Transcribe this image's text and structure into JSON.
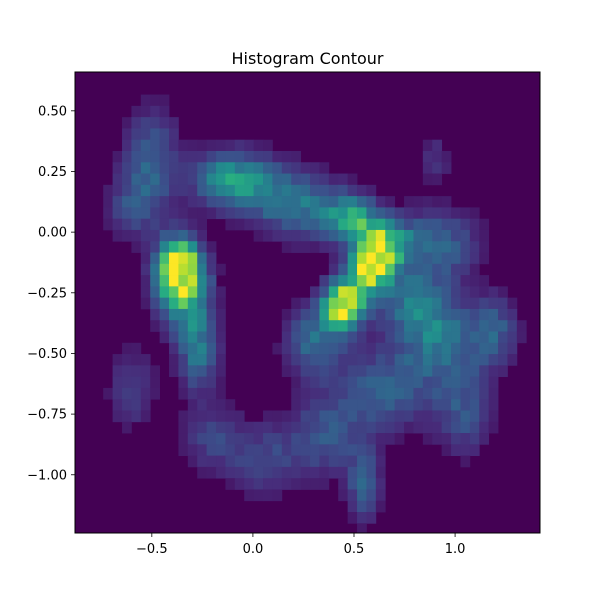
{
  "chart_data": {
    "type": "heatmap",
    "title": "Histogram Contour",
    "xlabel": "",
    "ylabel": "",
    "xlim": [
      -0.88,
      1.42
    ],
    "ylim": [
      -1.24,
      0.66
    ],
    "grid": false,
    "legend": "none",
    "colormap": "viridis",
    "background_color": "#440154",
    "x_ticks": [
      -0.5,
      0.0,
      0.5,
      1.0
    ],
    "x_tick_labels": [
      "−0.5",
      "0.0",
      "0.5",
      "1.0"
    ],
    "y_ticks": [
      0.5,
      0.25,
      0.0,
      -0.25,
      -0.5,
      -0.75,
      -1.0
    ],
    "y_tick_labels": [
      "0.50",
      "0.25",
      "0.00",
      "−0.25",
      "−0.50",
      "−0.75",
      "−1.00"
    ],
    "density_peaks": [
      {
        "x": -0.37,
        "y": -0.15,
        "intensity": 0.8,
        "sx": 0.07,
        "sy": 0.08
      },
      {
        "x": 0.58,
        "y": -0.15,
        "intensity": 1.0,
        "sx": 0.07,
        "sy": 0.07
      },
      {
        "x": 0.45,
        "y": -0.3,
        "intensity": 1.0,
        "sx": 0.07,
        "sy": 0.07
      },
      {
        "x": 0.65,
        "y": -0.05,
        "intensity": 0.65,
        "sx": 0.08,
        "sy": 0.07
      },
      {
        "x": 0.5,
        "y": 0.05,
        "intensity": 0.55,
        "sx": 0.09,
        "sy": 0.07
      },
      {
        "x": -0.12,
        "y": 0.22,
        "intensity": 0.55,
        "sx": 0.12,
        "sy": 0.08
      },
      {
        "x": -0.35,
        "y": -0.22,
        "intensity": 0.6,
        "sx": 0.09,
        "sy": 0.12
      },
      {
        "x": -0.27,
        "y": -0.48,
        "intensity": 0.4,
        "sx": 0.07,
        "sy": 0.12
      },
      {
        "x": -0.5,
        "y": 0.3,
        "intensity": 0.3,
        "sx": 0.1,
        "sy": 0.15
      },
      {
        "x": 0.1,
        "y": 0.15,
        "intensity": 0.3,
        "sx": 0.12,
        "sy": 0.1
      },
      {
        "x": 0.3,
        "y": 0.1,
        "intensity": 0.3,
        "sx": 0.12,
        "sy": 0.1
      },
      {
        "x": 0.9,
        "y": -0.05,
        "intensity": 0.35,
        "sx": 0.15,
        "sy": 0.1
      },
      {
        "x": 0.95,
        "y": -0.45,
        "intensity": 0.35,
        "sx": 0.15,
        "sy": 0.12
      },
      {
        "x": 0.65,
        "y": -0.65,
        "intensity": 0.3,
        "sx": 0.18,
        "sy": 0.12
      },
      {
        "x": 0.35,
        "y": -0.85,
        "intensity": 0.25,
        "sx": 0.15,
        "sy": 0.12
      },
      {
        "x": 0.55,
        "y": -1.05,
        "intensity": 0.3,
        "sx": 0.06,
        "sy": 0.1
      },
      {
        "x": -0.2,
        "y": -0.85,
        "intensity": 0.2,
        "sx": 0.12,
        "sy": 0.1
      },
      {
        "x": 0.05,
        "y": -0.95,
        "intensity": 0.2,
        "sx": 0.12,
        "sy": 0.1
      },
      {
        "x": 0.3,
        "y": -0.45,
        "intensity": 0.35,
        "sx": 0.1,
        "sy": 0.1
      },
      {
        "x": -0.6,
        "y": -0.65,
        "intensity": 0.2,
        "sx": 0.08,
        "sy": 0.12
      },
      {
        "x": 1.2,
        "y": -0.4,
        "intensity": 0.25,
        "sx": 0.08,
        "sy": 0.1
      },
      {
        "x": 1.05,
        "y": -0.75,
        "intensity": 0.25,
        "sx": 0.1,
        "sy": 0.12
      },
      {
        "x": 0.9,
        "y": 0.3,
        "intensity": 0.15,
        "sx": 0.06,
        "sy": 0.08
      },
      {
        "x": -0.6,
        "y": 0.1,
        "intensity": 0.2,
        "sx": 0.1,
        "sy": 0.1
      },
      {
        "x": 0.8,
        "y": -0.3,
        "intensity": 0.35,
        "sx": 0.12,
        "sy": 0.1
      }
    ]
  }
}
